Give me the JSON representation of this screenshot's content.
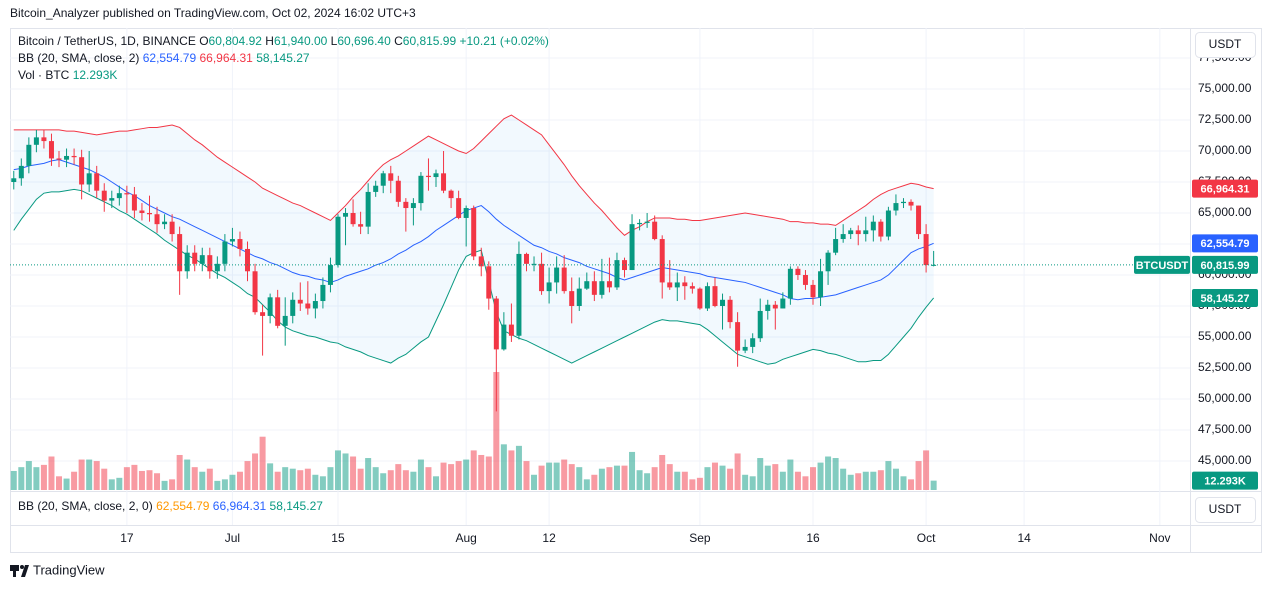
{
  "chart_data": {
    "type": "candlestick",
    "published": "Bitcoin_Analyzer published on TradingView.com, Oct 02, 2024 16:02 UTC+3",
    "title": "Bitcoin / TetherUS, 1D, BINANCE",
    "ohlc_prefix": [
      "O",
      "H",
      "L",
      "C"
    ],
    "ohlc_labels": [
      "60,804.92",
      "61,940.00",
      "60,696.40",
      "60,815.99"
    ],
    "change": "+10.21 (+0.02%)",
    "symbol": "BTCUSDT",
    "currency": "USDT",
    "brand": "TradingView",
    "up_color": "#089981",
    "down_color": "#f23645",
    "xlim": [
      -0.5,
      156
    ],
    "xticks": [
      {
        "value": 15,
        "label": "17"
      },
      {
        "value": 29,
        "label": "Jul"
      },
      {
        "value": 43,
        "label": "15"
      },
      {
        "value": 60,
        "label": "Aug"
      },
      {
        "value": 71,
        "label": "12"
      },
      {
        "value": 91,
        "label": "Sep"
      },
      {
        "value": 106,
        "label": "16"
      },
      {
        "value": 121,
        "label": "Oct"
      },
      {
        "value": 134,
        "label": "14"
      },
      {
        "value": 152,
        "label": "Nov"
      }
    ],
    "ylim": [
      42660,
      79920
    ],
    "yticks": [
      {
        "value": 45000,
        "label": "45,000.00"
      },
      {
        "value": 47500,
        "label": "47,500.00"
      },
      {
        "value": 50000,
        "label": "50,000.00"
      },
      {
        "value": 52500,
        "label": "52,500.00"
      },
      {
        "value": 55000,
        "label": "55,000.00"
      },
      {
        "value": 57500,
        "label": "57,500.00"
      },
      {
        "value": 60000,
        "label": "60,000.00"
      },
      {
        "value": 62500,
        "label": "62,500.00"
      },
      {
        "value": 65000,
        "label": "65,000.00"
      },
      {
        "value": 67500,
        "label": "67,500.00"
      },
      {
        "value": 70000,
        "label": "70,000.00"
      },
      {
        "value": 72500,
        "label": "72,500.00"
      },
      {
        "value": 75000,
        "label": "75,000.00"
      },
      {
        "value": 77500,
        "label": "77,500.00"
      }
    ],
    "grid": true,
    "open": [
      67500,
      67800,
      68800,
      70500,
      71100,
      70800,
      69400,
      69300,
      69600,
      69500,
      67300,
      68200,
      66800,
      66000,
      66200,
      66600,
      66500,
      65200,
      65000,
      64900,
      64100,
      64300,
      63300,
      60300,
      61800,
      60900,
      61600,
      60300,
      60900,
      62700,
      62900,
      62100,
      60300,
      57000,
      56700,
      58200,
      55900,
      56700,
      58000,
      57700,
      57300,
      57900,
      59200,
      60800,
      64700,
      65000,
      64100,
      63900,
      66700,
      67200,
      68200,
      67600,
      65900,
      65400,
      65800,
      68000,
      67900,
      68200,
      66800,
      66200,
      64600,
      65400,
      61500,
      60700,
      58100,
      54000,
      56000,
      55100,
      61700,
      60900,
      60900,
      58700,
      59400,
      60600,
      58700,
      57500,
      58900,
      59500,
      58400,
      59500,
      59000,
      61200,
      60400,
      64100,
      64200,
      64300,
      62900,
      59400,
      59000,
      59400,
      59100,
      58900,
      57300,
      59100,
      57500,
      58000,
      56200,
      53900,
      54200,
      54900,
      57100,
      57600,
      57300,
      58100,
      60500,
      60000,
      59200,
      58200,
      60300,
      61800,
      62900,
      63300,
      63600,
      63300,
      63600,
      64300,
      63100,
      65200,
      65800,
      65900,
      65600,
      63300,
      60804.92
    ],
    "high": [
      68400,
      69400,
      71100,
      71700,
      71700,
      71400,
      70000,
      70200,
      70200,
      70100,
      70000,
      68800,
      67400,
      66800,
      67200,
      67200,
      67100,
      65800,
      66400,
      65500,
      64900,
      64900,
      63900,
      62400,
      62400,
      62200,
      62200,
      61500,
      63300,
      63800,
      63500,
      62700,
      60900,
      57600,
      58500,
      58800,
      58200,
      58600,
      59400,
      59500,
      58500,
      59800,
      61400,
      64900,
      65400,
      66100,
      65100,
      67400,
      67600,
      68400,
      68800,
      68000,
      66200,
      66200,
      68300,
      69400,
      68500,
      70000,
      66900,
      66800,
      65600,
      65600,
      62200,
      61100,
      58300,
      57000,
      57700,
      62700,
      61800,
      61500,
      61800,
      60600,
      61500,
      61600,
      59800,
      59800,
      60200,
      60300,
      61300,
      61400,
      61800,
      61400,
      64900,
      64500,
      65000,
      64800,
      63200,
      61200,
      60200,
      59900,
      59400,
      59000,
      59400,
      59800,
      58500,
      58300,
      57000,
      54800,
      55300,
      58100,
      58000,
      57900,
      58600,
      60700,
      60700,
      60400,
      59600,
      61300,
      62000,
      63800,
      64100,
      63800,
      64000,
      64700,
      64800,
      64500,
      65500,
      66500,
      66200,
      66100,
      65600,
      64100,
      61940
    ],
    "low": [
      66900,
      67200,
      68200,
      69900,
      70200,
      68800,
      68700,
      68700,
      68900,
      66100,
      66700,
      66200,
      65100,
      65400,
      65600,
      65000,
      64600,
      64400,
      64300,
      63400,
      63700,
      62700,
      58400,
      59700,
      60300,
      60300,
      59700,
      59700,
      60300,
      62300,
      61500,
      59500,
      56800,
      53500,
      56100,
      55700,
      54300,
      56100,
      57100,
      56800,
      56500,
      57300,
      58600,
      60600,
      62400,
      63900,
      63300,
      63300,
      66300,
      66600,
      66600,
      65500,
      63500,
      64000,
      65200,
      66800,
      67100,
      66600,
      65400,
      64500,
      62300,
      61200,
      59900,
      57200,
      49000,
      53900,
      54600,
      54800,
      60300,
      60300,
      58400,
      57700,
      58500,
      58500,
      56100,
      57100,
      58800,
      57900,
      58100,
      58600,
      58800,
      59800,
      60400,
      63600,
      63800,
      62800,
      58100,
      58800,
      57900,
      58000,
      58500,
      57200,
      57100,
      57400,
      55600,
      55700,
      52600,
      53700,
      53700,
      54600,
      56400,
      55600,
      57300,
      57600,
      59600,
      58800,
      57600,
      57500,
      59200,
      61600,
      62600,
      62900,
      62400,
      62700,
      62700,
      62700,
      62800,
      64800,
      65400,
      65200,
      62900,
      60200,
      60696.4
    ],
    "close": [
      67800,
      68800,
      70500,
      71100,
      70800,
      69400,
      69300,
      69600,
      69500,
      67300,
      68200,
      66800,
      66000,
      66200,
      66600,
      66500,
      65200,
      65000,
      64900,
      64100,
      64300,
      63300,
      60300,
      61800,
      60900,
      61600,
      60300,
      60900,
      62700,
      62900,
      62100,
      60300,
      57000,
      56700,
      58200,
      55900,
      56700,
      58000,
      57700,
      57300,
      57900,
      59200,
      60800,
      64700,
      65000,
      64100,
      63900,
      66700,
      67200,
      68200,
      67600,
      65900,
      65400,
      65800,
      68000,
      67900,
      68200,
      66800,
      66200,
      64600,
      65400,
      61500,
      60700,
      58100,
      54000,
      56000,
      55100,
      61700,
      60900,
      60900,
      58700,
      59400,
      60600,
      58700,
      57500,
      58900,
      59500,
      58400,
      59500,
      59000,
      61200,
      60400,
      64100,
      64200,
      64300,
      62900,
      59400,
      59000,
      59400,
      59100,
      58900,
      57300,
      59100,
      57500,
      58000,
      56200,
      53900,
      54200,
      54900,
      57100,
      57600,
      57300,
      58100,
      60500,
      60000,
      59200,
      58200,
      60300,
      61800,
      62900,
      63300,
      63600,
      63300,
      63600,
      64300,
      63100,
      65200,
      65800,
      65900,
      65600,
      63300,
      60800,
      60815.99
    ],
    "volume": {
      "label": "Vol · BTC",
      "last_label": "12.293K",
      "values": [
        25000,
        30000,
        38000,
        30000,
        33000,
        44000,
        18000,
        15000,
        24000,
        40000,
        40000,
        38000,
        28000,
        14000,
        16000,
        30000,
        33000,
        25000,
        26000,
        22000,
        12000,
        14000,
        46000,
        40000,
        30000,
        24000,
        28000,
        12000,
        14000,
        20000,
        24000,
        38000,
        48000,
        70000,
        35000,
        24000,
        30000,
        28000,
        26000,
        28000,
        20000,
        18000,
        30000,
        52000,
        48000,
        44000,
        28000,
        42000,
        30000,
        22000,
        26000,
        34000,
        26000,
        24000,
        40000,
        30000,
        18000,
        36000,
        34000,
        38000,
        40000,
        52000,
        46000,
        44000,
        155000,
        60000,
        52000,
        58000,
        38000,
        20000,
        32000,
        36000,
        36000,
        40000,
        34000,
        30000,
        14000,
        20000,
        28000,
        30000,
        32000,
        32000,
        50000,
        26000,
        22000,
        30000,
        46000,
        34000,
        24000,
        24000,
        14000,
        16000,
        30000,
        36000,
        32000,
        28000,
        48000,
        20000,
        18000,
        42000,
        32000,
        34000,
        24000,
        40000,
        24000,
        18000,
        30000,
        36000,
        44000,
        42000,
        28000,
        20000,
        22000,
        24000,
        24000,
        26000,
        38000,
        28000,
        18000,
        14000,
        38000,
        52000,
        12293
      ]
    },
    "bb": {
      "label": "BB (20, SMA, close, 2)",
      "basis": {
        "color": "#2962ff",
        "last_label": "62,554.79",
        "values": [
          68500,
          68600,
          68800,
          68900,
          69000,
          69200,
          69300,
          69100,
          68900,
          68700,
          68500,
          68200,
          67900,
          67500,
          67100,
          66700,
          66400,
          66000,
          65600,
          65300,
          65000,
          64700,
          64500,
          64200,
          63900,
          63600,
          63300,
          63000,
          62700,
          62400,
          62100,
          61800,
          61500,
          61300,
          61000,
          60800,
          60500,
          60200,
          60000,
          59900,
          59700,
          59600,
          59400,
          59600,
          59900,
          60100,
          60300,
          60500,
          60800,
          61000,
          61300,
          61700,
          62000,
          62400,
          62700,
          63100,
          63600,
          64000,
          64400,
          64800,
          65200,
          65400,
          65600,
          65100,
          64500,
          64000,
          63600,
          63200,
          62800,
          62400,
          62200,
          61900,
          61700,
          61400,
          61200,
          61000,
          60700,
          60500,
          60300,
          60100,
          59800,
          59600,
          59800,
          60000,
          60200,
          60400,
          60600,
          60500,
          60400,
          60300,
          60200,
          60100,
          59900,
          59800,
          59700,
          59600,
          59500,
          59400,
          59200,
          59000,
          58800,
          58600,
          58400,
          58100,
          58000,
          58100,
          58100,
          58200,
          58300,
          58400,
          58600,
          58800,
          59000,
          59200,
          59400,
          59600,
          60000,
          60600,
          61200,
          61800,
          62100,
          62300,
          62554.79
        ]
      },
      "upper": {
        "color": "#f23645",
        "last_label": "66,964.31",
        "values": [
          71700,
          71700,
          71700,
          71700,
          71700,
          71700,
          71700,
          71600,
          71600,
          71500,
          71400,
          71300,
          71400,
          71500,
          71600,
          71600,
          71700,
          71800,
          71900,
          71900,
          72000,
          72100,
          71900,
          71400,
          70900,
          70500,
          70000,
          69500,
          69100,
          68700,
          68300,
          67900,
          67500,
          67000,
          66700,
          66400,
          66100,
          65800,
          65600,
          65300,
          65000,
          64700,
          64400,
          65000,
          65600,
          66300,
          66900,
          67600,
          68300,
          68900,
          69300,
          69600,
          70000,
          70400,
          70800,
          71200,
          70900,
          70600,
          70300,
          70000,
          69800,
          70200,
          70800,
          71400,
          72000,
          72600,
          72900,
          72500,
          72100,
          71700,
          71300,
          70500,
          69700,
          68900,
          68000,
          67200,
          66500,
          65800,
          65200,
          64500,
          63800,
          63200,
          63600,
          63900,
          64300,
          64600,
          64600,
          64600,
          64500,
          64500,
          64400,
          64400,
          64500,
          64600,
          64700,
          64800,
          64900,
          65000,
          64900,
          64800,
          64700,
          64600,
          64500,
          64300,
          64300,
          64200,
          64200,
          64100,
          64100,
          64000,
          64400,
          64800,
          65200,
          65600,
          66100,
          66500,
          66800,
          67000,
          67200,
          67400,
          67300,
          67100,
          66964.31
        ]
      },
      "lower": {
        "color": "#089981",
        "last_label": "58,145.27",
        "values": [
          63600,
          64500,
          65300,
          66100,
          66600,
          66700,
          66700,
          66800,
          66900,
          66800,
          66500,
          66200,
          65900,
          65600,
          65200,
          64900,
          64500,
          64100,
          63700,
          63300,
          62800,
          62400,
          62000,
          61600,
          61300,
          60900,
          60500,
          60100,
          59800,
          59400,
          59000,
          58500,
          58200,
          57600,
          57000,
          56300,
          55800,
          55500,
          55300,
          55100,
          55000,
          54800,
          54600,
          54500,
          54200,
          54000,
          53800,
          53500,
          53300,
          53100,
          52900,
          53300,
          53600,
          54100,
          54600,
          55000,
          56300,
          57600,
          59000,
          60400,
          61500,
          61800,
          62000,
          59500,
          57000,
          55500,
          55200,
          54900,
          54700,
          54400,
          54100,
          53800,
          53500,
          53200,
          52900,
          53200,
          53500,
          53800,
          54100,
          54400,
          54700,
          55000,
          55300,
          55600,
          55900,
          56200,
          56400,
          56300,
          56300,
          56200,
          56100,
          56000,
          55600,
          55100,
          54600,
          54100,
          53600,
          53400,
          53200,
          53000,
          52800,
          52900,
          53200,
          53400,
          53600,
          53800,
          54000,
          53900,
          53700,
          53600,
          53400,
          53200,
          53000,
          53000,
          53100,
          53100,
          53600,
          54300,
          55000,
          55700,
          56600,
          57400,
          58145.27
        ]
      }
    },
    "pane2": {
      "label": "BB (20, SMA, close, 2, 0)",
      "colors": [
        "#ff9800",
        "#2962ff",
        "#089981"
      ]
    }
  }
}
